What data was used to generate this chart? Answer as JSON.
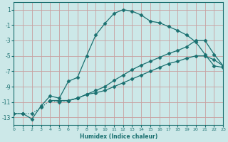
{
  "xlabel": "Humidex (Indice chaleur)",
  "xlim": [
    0,
    23
  ],
  "ylim": [
    -14,
    2
  ],
  "yticks": [
    1,
    -1,
    -3,
    -5,
    -7,
    -9,
    -11,
    -13
  ],
  "xticks": [
    0,
    1,
    2,
    3,
    4,
    5,
    6,
    7,
    8,
    9,
    10,
    11,
    12,
    13,
    14,
    15,
    16,
    17,
    18,
    19,
    20,
    21,
    22,
    23
  ],
  "line_color": "#1a7070",
  "bg_color": "#cce8e8",
  "grid_color": "#aecfcf",
  "lines": [
    {
      "x": [
        0,
        1,
        2,
        3,
        4,
        5,
        6,
        7,
        8,
        9,
        10,
        11,
        12,
        13,
        14,
        15,
        16,
        17,
        18,
        19,
        20,
        21,
        22,
        23
      ],
      "y": [
        -12.5,
        -12.5,
        -13.2,
        -11.5,
        -10.2,
        -10.5,
        -8.3,
        -7.8,
        -5.0,
        -2.3,
        -0.8,
        0.5,
        1.0,
        0.8,
        0.3,
        -0.5,
        -0.7,
        -1.2,
        -1.7,
        -2.3,
        -3.2,
        -4.8,
        -6.3,
        -6.5
      ],
      "marker": "D",
      "markersize": 2.5,
      "linestyle": "-"
    },
    {
      "x": [
        4,
        5,
        6,
        7,
        8,
        9,
        10,
        11,
        12,
        13,
        14,
        15,
        16,
        17,
        18,
        19,
        20,
        21,
        22,
        23
      ],
      "y": [
        -10.8,
        -10.8,
        -10.8,
        -10.5,
        -10.0,
        -9.5,
        -9.0,
        -8.2,
        -7.5,
        -6.8,
        -6.2,
        -5.7,
        -5.2,
        -4.7,
        -4.3,
        -3.8,
        -3.0,
        -3.0,
        -4.8,
        -6.3
      ],
      "marker": "D",
      "markersize": 2.5,
      "linestyle": "-"
    },
    {
      "x": [
        4,
        5,
        6,
        7,
        8,
        9,
        10,
        11,
        12,
        13,
        14,
        15,
        16,
        17,
        18,
        19,
        20,
        21,
        22,
        23
      ],
      "y": [
        -10.8,
        -10.8,
        -10.8,
        -10.5,
        -10.0,
        -9.8,
        -9.5,
        -9.0,
        -8.5,
        -8.0,
        -7.5,
        -7.0,
        -6.5,
        -6.0,
        -5.7,
        -5.3,
        -5.0,
        -5.0,
        -5.5,
        -6.3
      ],
      "marker": "D",
      "markersize": 2.5,
      "linestyle": "-"
    },
    {
      "x": [
        0,
        1,
        2,
        3,
        4,
        5,
        6,
        7
      ],
      "y": [
        -12.5,
        -12.5,
        -12.5,
        -11.7,
        -10.8,
        -11.0,
        -10.8,
        -10.5
      ],
      "marker": "D",
      "markersize": 2.5,
      "linestyle": ":"
    }
  ]
}
